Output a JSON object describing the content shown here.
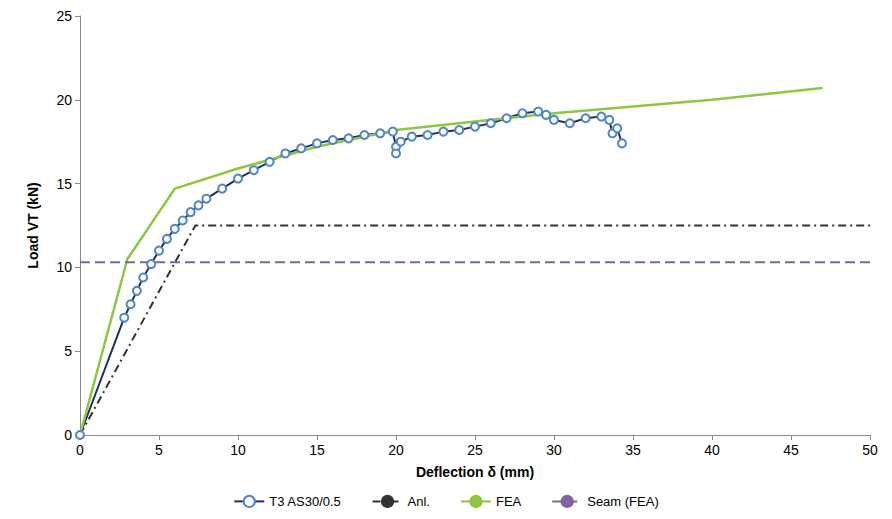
{
  "chart_data": {
    "type": "line",
    "x_label": "Deflection δ (mm)",
    "y_label": "Load VT (kN)",
    "xlim": [
      0,
      50
    ],
    "xticks": [
      0,
      5,
      10,
      15,
      20,
      25,
      30,
      35,
      40,
      45,
      50
    ],
    "ylim": [
      0,
      25
    ],
    "yticks": [
      0,
      5,
      10,
      15,
      20,
      25
    ],
    "grid": false,
    "legend": "bottom",
    "series": [
      {
        "name": "T3 AS30/0.5",
        "color": "#1f2d6b",
        "marker": "circle",
        "line_style": "solid",
        "x": [
          0,
          2.8,
          3.2,
          3.6,
          4,
          4.5,
          5,
          5.5,
          6,
          6.5,
          7,
          7.5,
          8,
          9,
          10,
          11,
          12,
          13,
          14,
          15,
          16,
          17,
          18,
          19,
          19.8,
          20,
          20,
          20.3,
          21,
          22,
          23,
          24,
          25,
          26,
          27,
          28,
          29,
          29.5,
          30,
          31,
          32,
          33,
          33.5,
          33.7,
          34,
          34.3
        ],
        "values": [
          0,
          7,
          7.8,
          8.6,
          9.4,
          10.2,
          11,
          11.7,
          12.3,
          12.8,
          13.3,
          13.7,
          14.1,
          14.7,
          15.3,
          15.8,
          16.3,
          16.8,
          17.1,
          17.4,
          17.6,
          17.7,
          17.9,
          18.0,
          18.1,
          17.2,
          16.8,
          17.5,
          17.8,
          17.9,
          18.1,
          18.2,
          18.4,
          18.6,
          18.9,
          19.2,
          19.3,
          19.1,
          18.8,
          18.6,
          18.9,
          19.0,
          18.8,
          18.0,
          18.3,
          17.4
        ]
      },
      {
        "name": "Anl.",
        "color": "#333333",
        "line_style": "dashdot",
        "x": [
          0,
          7.3,
          50
        ],
        "values": [
          0,
          12.5,
          12.5
        ]
      },
      {
        "name": "FEA",
        "color": "#8dc63f",
        "line_style": "solid",
        "x": [
          0,
          3,
          6,
          10,
          15,
          20,
          25,
          30,
          40,
          47
        ],
        "values": [
          0,
          10.5,
          14.7,
          15.9,
          17.2,
          18.2,
          18.7,
          19.2,
          20.0,
          20.7
        ]
      },
      {
        "name": "Seam (FEA)",
        "color": "#8064a2",
        "line_style": "dashed",
        "x": [
          0,
          50
        ],
        "values": [
          10.3,
          10.3
        ]
      }
    ]
  }
}
